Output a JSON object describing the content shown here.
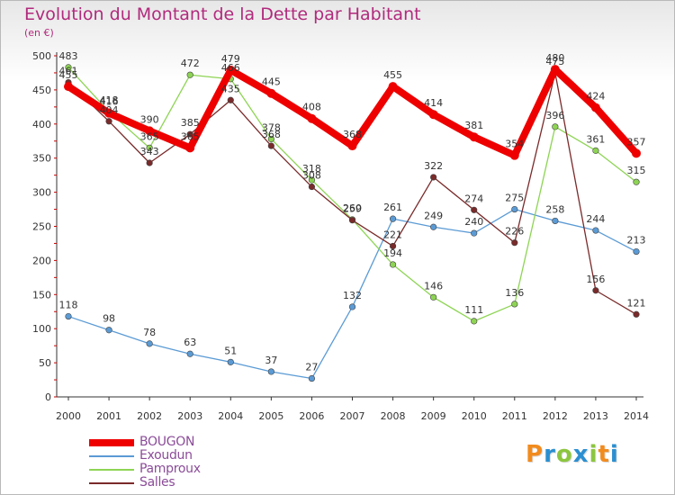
{
  "title": "Evolution du Montant de la Dette par Habitant",
  "unit": "(en €)",
  "logo": {
    "letters": [
      "P",
      "r",
      "o",
      "x",
      "i",
      "t",
      "i"
    ],
    "colors": [
      "#f28b1e",
      "#2b8fd0",
      "#8cc63f",
      "#2b8fd0",
      "#8cc63f",
      "#f28b1e",
      "#2b8fd0"
    ]
  },
  "chart_data": {
    "type": "line",
    "x": [
      2000,
      2001,
      2002,
      2003,
      2004,
      2005,
      2006,
      2007,
      2008,
      2009,
      2010,
      2011,
      2012,
      2013,
      2014
    ],
    "ylim": [
      0,
      500
    ],
    "yticks": [
      0,
      50,
      100,
      150,
      200,
      250,
      300,
      350,
      400,
      450,
      500
    ],
    "grid": false,
    "legend_position": "bottom-left",
    "series": [
      {
        "name": "BOUGON",
        "color": "#ee0000",
        "emphasis": "bold",
        "values": [
          455,
          416,
          390,
          365,
          479,
          445,
          408,
          368,
          455,
          414,
          381,
          354,
          480,
          424,
          357
        ]
      },
      {
        "name": "Exoudun",
        "color": "#5b9bd5",
        "values": [
          118,
          98,
          78,
          63,
          51,
          37,
          27,
          132,
          261,
          249,
          240,
          275,
          258,
          244,
          213
        ]
      },
      {
        "name": "Pamproux",
        "color": "#8ed454",
        "values": [
          483,
          418,
          365,
          472,
          466,
          378,
          318,
          260,
          194,
          146,
          111,
          136,
          396,
          361,
          315
        ]
      },
      {
        "name": "Salles",
        "color": "#7a2a2a",
        "values": [
          461,
          404,
          343,
          385,
          435,
          368,
          308,
          259,
          221,
          322,
          274,
          226,
          475,
          156,
          121
        ]
      }
    ]
  }
}
